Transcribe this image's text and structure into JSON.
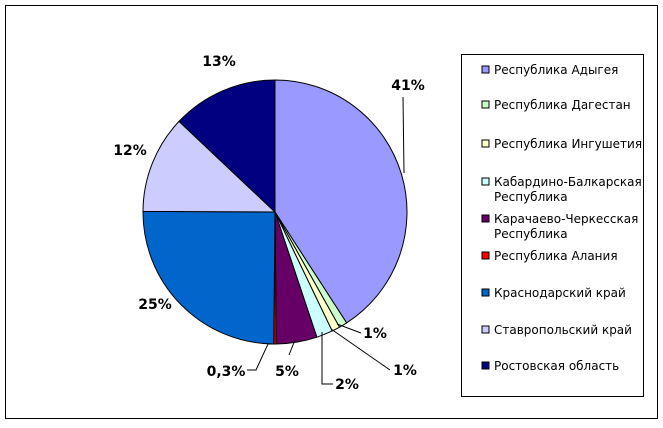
{
  "chart_data": {
    "type": "pie",
    "categories": [
      "Республика Адыгея",
      "Республика Дагестан",
      "Республика Ингушетия",
      "Кабардино-Балкарская Республика",
      "Карачаево-Черкесская Республика",
      "Республика Алания",
      "Краснодарский край",
      "Ставропольский край",
      "Ростовская область"
    ],
    "legend_lines": [
      [
        "Республика Адыгея"
      ],
      [
        "Республика Дагестан"
      ],
      [
        "Республика Ингушетия"
      ],
      [
        "Кабардино-Балкарская",
        "Республика"
      ],
      [
        "Карачаево-Черкесская",
        "Республика"
      ],
      [
        "Республика Алания"
      ],
      [
        "Краснодарский край"
      ],
      [
        "Ставропольский край"
      ],
      [
        "Ростовская область"
      ]
    ],
    "values": [
      41,
      1,
      1,
      2,
      5,
      0.3,
      25,
      12,
      13
    ],
    "data_labels": [
      "41%",
      "1%",
      "1%",
      "2%",
      "5%",
      "0,3%",
      "25%",
      "12%",
      "13%"
    ],
    "colors": [
      "#9999FF",
      "#CCFFCC",
      "#FFFFCC",
      "#CCFFFF",
      "#660066",
      "#FF0000",
      "#0066CC",
      "#CCCCFF",
      "#000080"
    ],
    "legend_position": "right",
    "title": "",
    "xlabel": "",
    "ylabel": ""
  }
}
